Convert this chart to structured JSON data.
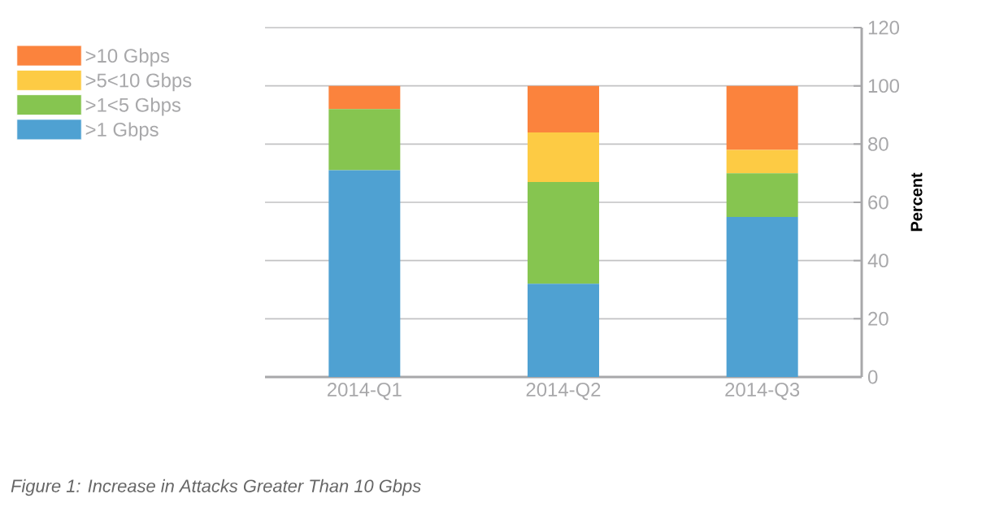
{
  "chart_data": {
    "type": "bar",
    "stacked": true,
    "categories": [
      "2014-Q1",
      "2014-Q2",
      "2014-Q3"
    ],
    "series": [
      {
        "name": ">1 Gbps",
        "color": "#4fa1d2",
        "values": [
          71,
          32,
          55
        ]
      },
      {
        "name": ">1<5 Gbps",
        "color": "#86c550",
        "values": [
          21,
          35,
          15
        ]
      },
      {
        "name": ">5<10 Gbps",
        "color": "#fdcb44",
        "values": [
          0,
          17,
          8
        ]
      },
      {
        "name": ">10 Gbps",
        "color": "#fb833d",
        "values": [
          8,
          16,
          22
        ]
      }
    ],
    "ylabel": "Percent",
    "ylim": [
      0,
      120
    ],
    "yticks": [
      0,
      20,
      40,
      60,
      80,
      100,
      120
    ],
    "grid": "y",
    "legend": "top left",
    "annotations": [
      "Figure 1: Increase in Attacks Greater Than 10 Gbps"
    ]
  }
}
